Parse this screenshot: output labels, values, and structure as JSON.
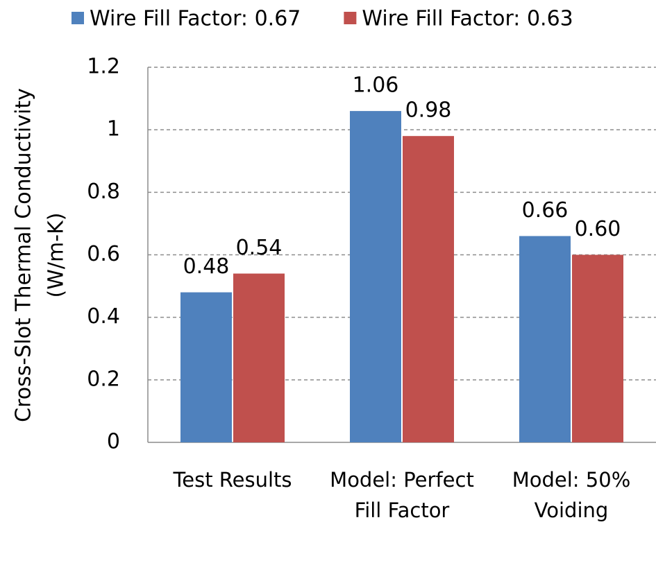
{
  "chart_data": {
    "type": "bar",
    "categories": [
      "Test Results",
      "Model: Perfect Fill Factor",
      "Model: 50% Voiding"
    ],
    "series": [
      {
        "name": "Wire Fill Factor: 0.67",
        "color": "#4f81bd",
        "values": [
          0.48,
          1.06,
          0.66
        ]
      },
      {
        "name": "Wire Fill Factor: 0.63",
        "color": "#c0504d",
        "values": [
          0.54,
          0.98,
          0.6
        ],
        "value_labels": [
          "0.54",
          "0.98",
          "0.60"
        ]
      }
    ],
    "y_label": [
      "Cross-Slot Thermal Conductivity",
      "(W/m-K)"
    ],
    "ylim": [
      0,
      1.2
    ],
    "yticks": [
      0,
      0.2,
      0.4,
      0.6,
      0.8,
      1,
      1.2
    ],
    "grid": true,
    "legend": "top"
  }
}
